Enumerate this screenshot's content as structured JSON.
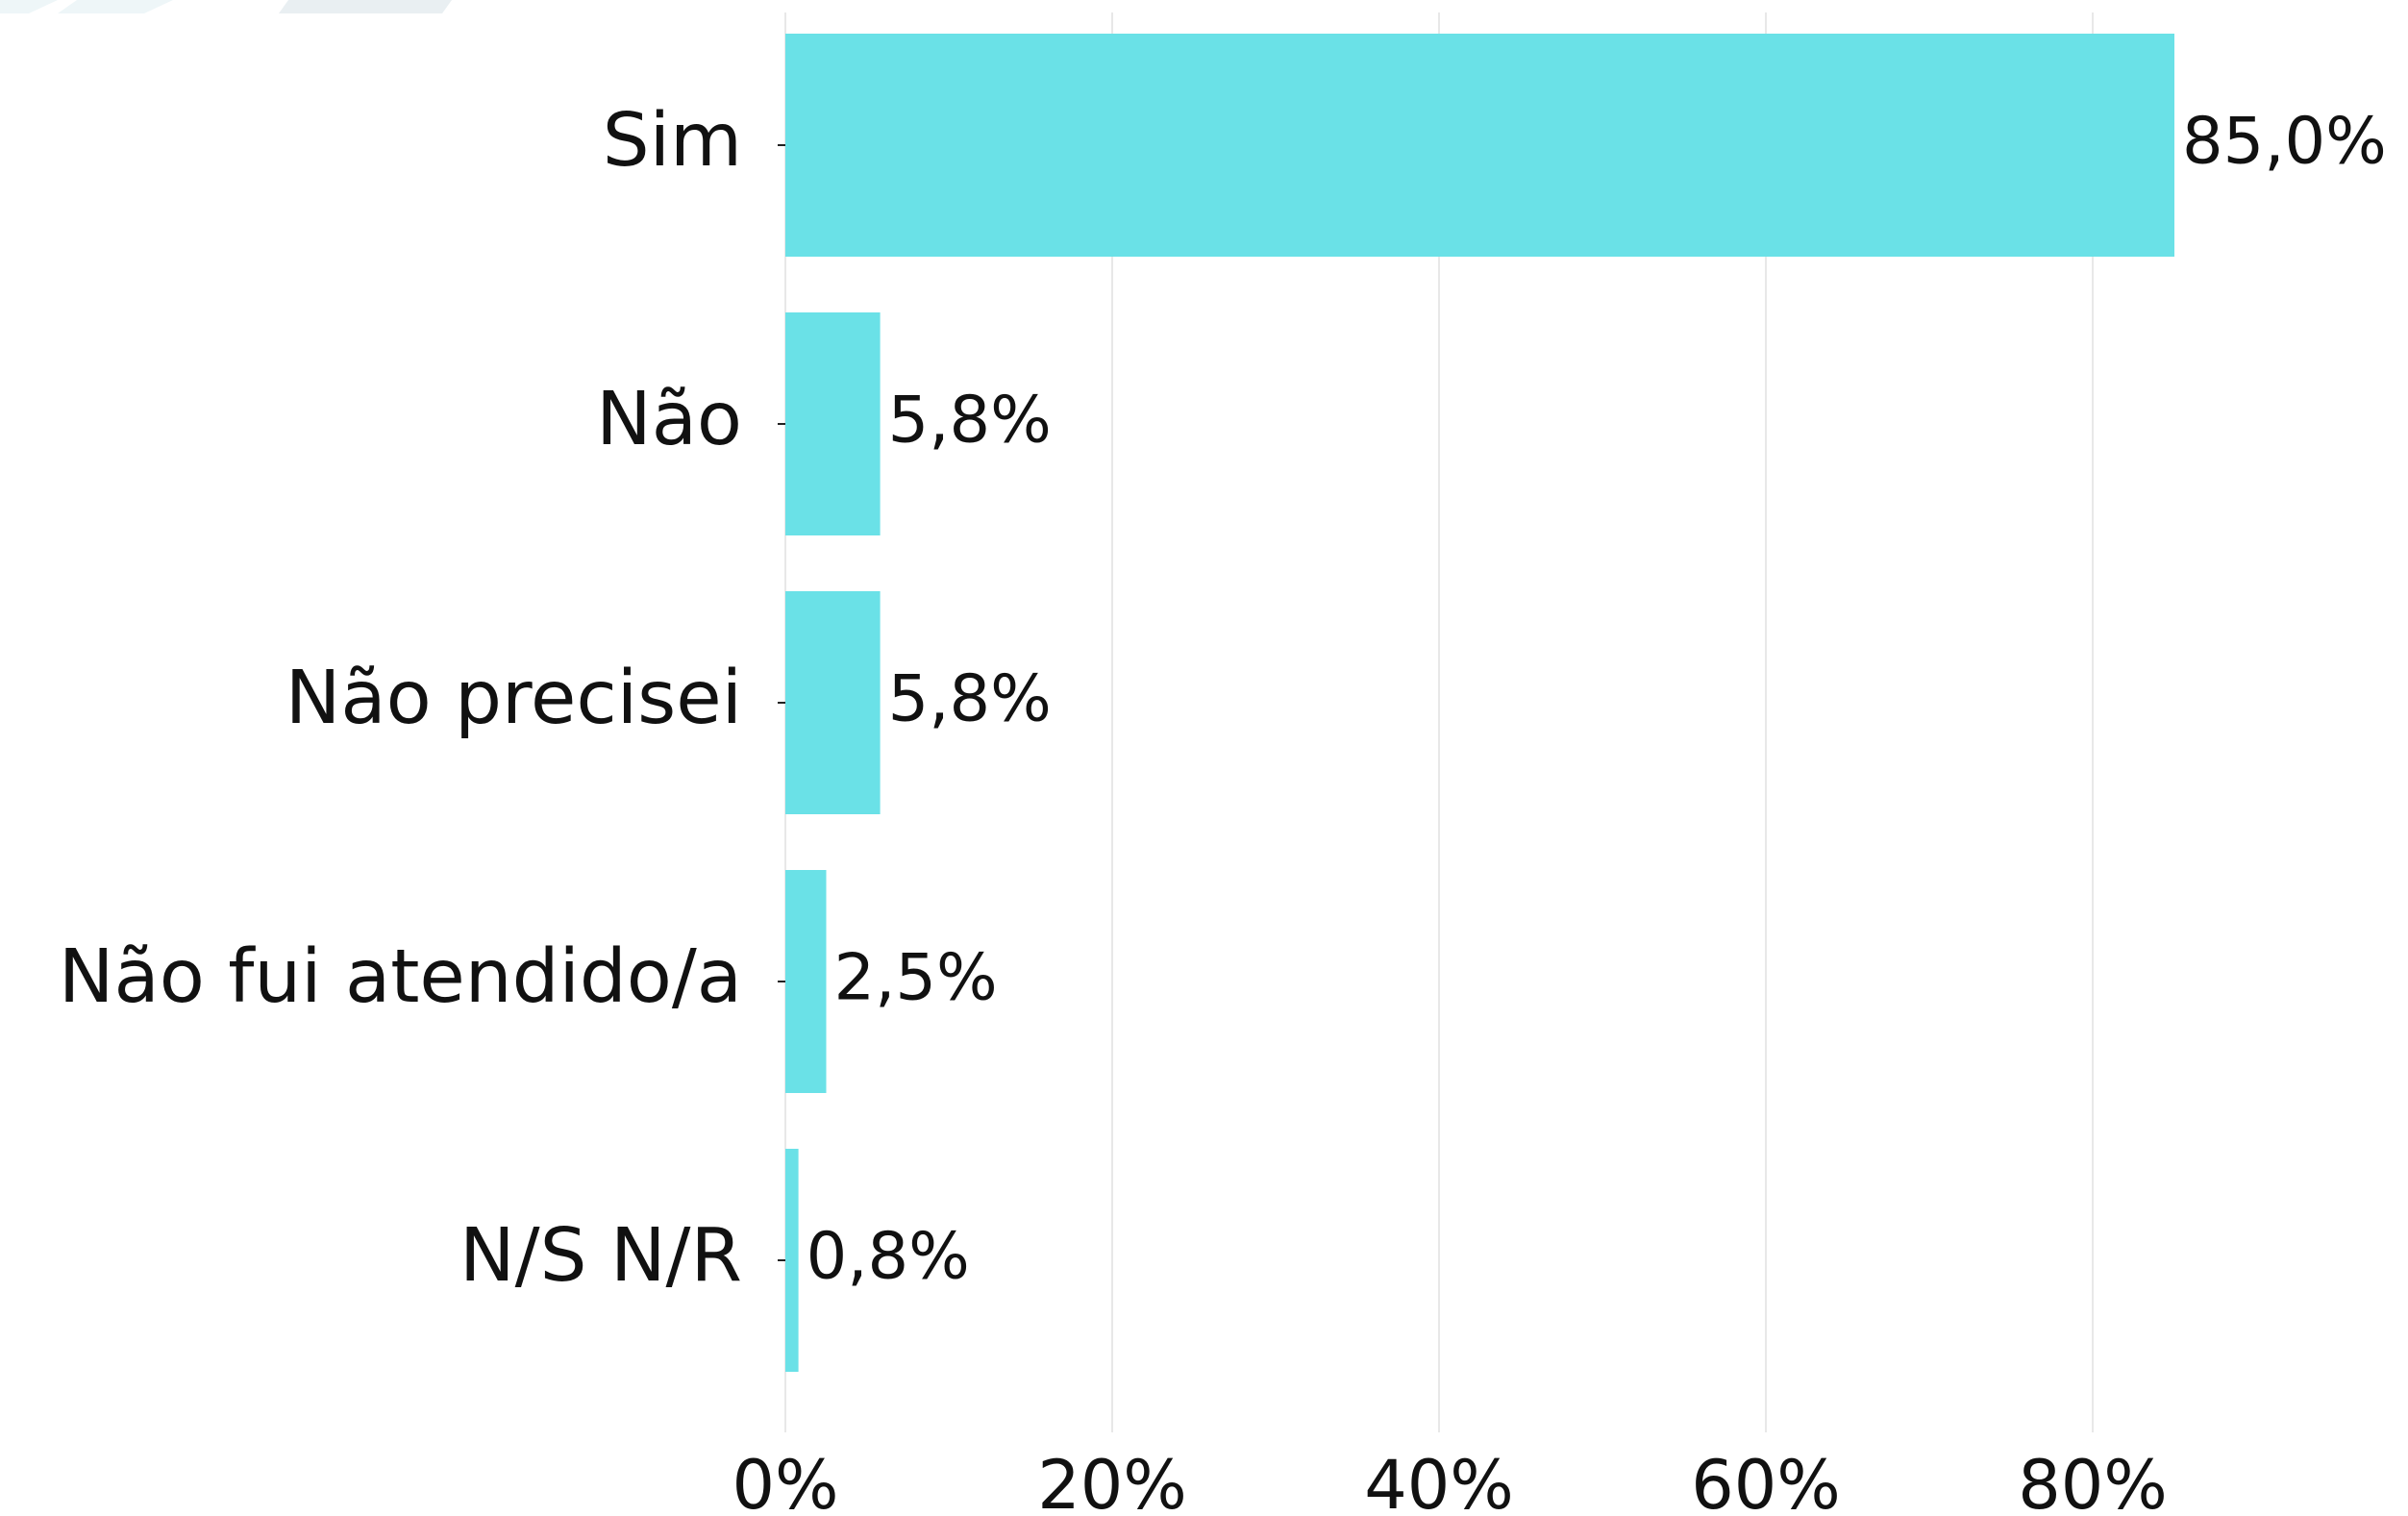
{
  "chart_data": {
    "type": "bar",
    "orientation": "horizontal",
    "categories": [
      "Sim",
      "Não",
      "Não precisei",
      "Não fui atendido/a",
      "N/S N/R"
    ],
    "values": [
      85.0,
      5.8,
      5.8,
      2.5,
      0.8
    ],
    "value_labels": [
      "85,0%",
      "5,8%",
      "5,8%",
      "2,5%",
      "0,8%"
    ],
    "color": "#6ae1e7",
    "xlim": [
      0,
      99
    ],
    "xticks": [
      {
        "value": 0,
        "label": "0%"
      },
      {
        "value": 20,
        "label": "20%"
      },
      {
        "value": 40,
        "label": "40%"
      },
      {
        "value": 60,
        "label": "60%"
      },
      {
        "value": 80,
        "label": "80%"
      }
    ],
    "grid": true
  }
}
